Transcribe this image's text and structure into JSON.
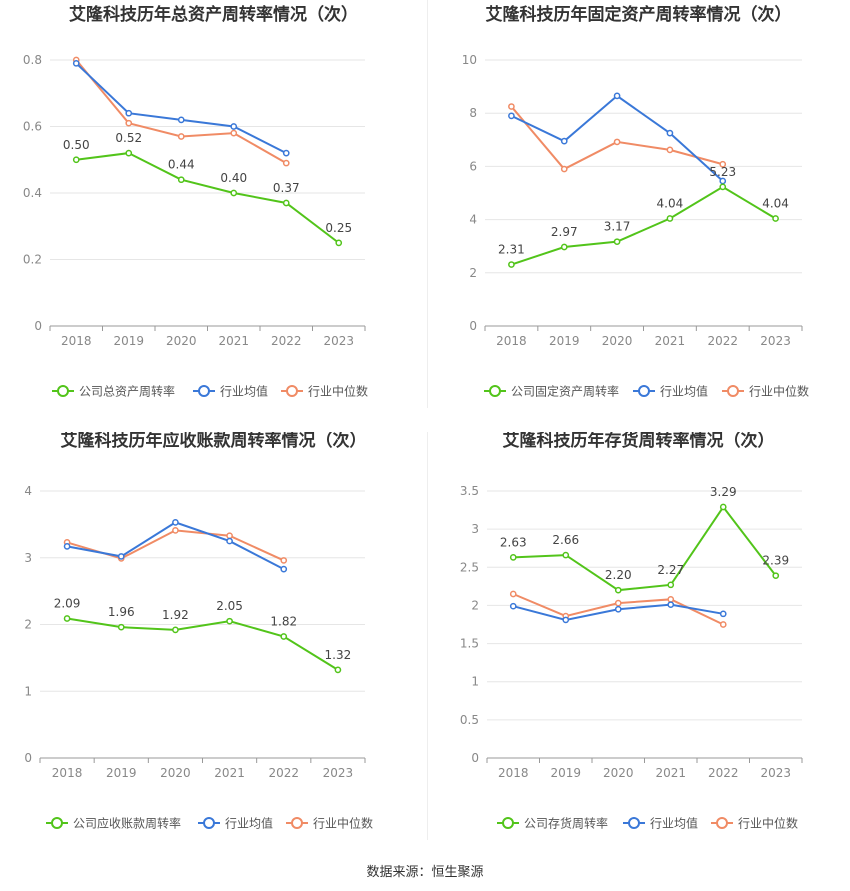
{
  "source": "数据来源：恒生聚源",
  "colors": {
    "company": "#52c41a",
    "industry_avg": "#3a78d8",
    "industry_median": "#f08b65",
    "grid": "#e6e6e6",
    "axis_text": "#888888",
    "title": "#333333"
  },
  "chart_data": [
    {
      "type": "line",
      "title": "艾隆科技历年总资产周转率情况（次）",
      "categories": [
        "2018",
        "2019",
        "2020",
        "2021",
        "2022",
        "2023"
      ],
      "ylim": [
        0,
        0.8
      ],
      "yticks": [
        "0",
        "0.2",
        "0.4",
        "0.6",
        "0.8"
      ],
      "legend_position": "bottom",
      "series": [
        {
          "name": "公司总资产周转率",
          "values": [
            0.5,
            0.52,
            0.44,
            0.4,
            0.37,
            0.25
          ],
          "labels": [
            "0.50",
            "0.52",
            "0.44",
            "0.40",
            "0.37",
            "0.25"
          ]
        },
        {
          "name": "行业均值",
          "values": [
            0.79,
            0.64,
            0.62,
            0.6,
            0.52,
            null
          ]
        },
        {
          "name": "行业中位数",
          "values": [
            0.8,
            0.61,
            0.57,
            0.58,
            0.49,
            null
          ]
        }
      ]
    },
    {
      "type": "line",
      "title": "艾隆科技历年固定资产周转率情况（次）",
      "categories": [
        "2018",
        "2019",
        "2020",
        "2021",
        "2022",
        "2023"
      ],
      "ylim": [
        0,
        10
      ],
      "yticks": [
        "0",
        "2",
        "4",
        "6",
        "8",
        "10"
      ],
      "legend_position": "bottom",
      "series": [
        {
          "name": "公司固定资产周转率",
          "values": [
            2.31,
            2.97,
            3.17,
            4.04,
            5.23,
            4.04
          ],
          "labels": [
            "2.31",
            "2.97",
            "3.17",
            "4.04",
            "5.23",
            "4.04"
          ]
        },
        {
          "name": "行业均值",
          "values": [
            7.9,
            6.95,
            8.65,
            7.25,
            5.45,
            null
          ]
        },
        {
          "name": "行业中位数",
          "values": [
            8.25,
            5.9,
            6.92,
            6.62,
            6.08,
            null
          ]
        }
      ]
    },
    {
      "type": "line",
      "title": "艾隆科技历年应收账款周转率情况（次）",
      "categories": [
        "2018",
        "2019",
        "2020",
        "2021",
        "2022",
        "2023"
      ],
      "ylim": [
        0,
        4
      ],
      "yticks": [
        "0",
        "1",
        "2",
        "3",
        "4"
      ],
      "legend_position": "bottom",
      "series": [
        {
          "name": "公司应收账款周转率",
          "values": [
            2.09,
            1.96,
            1.92,
            2.05,
            1.82,
            1.32
          ],
          "labels": [
            "2.09",
            "1.96",
            "1.92",
            "2.05",
            "1.82",
            "1.32"
          ]
        },
        {
          "name": "行业均值",
          "values": [
            3.17,
            3.02,
            3.53,
            3.25,
            2.83,
            null
          ]
        },
        {
          "name": "行业中位数",
          "values": [
            3.23,
            2.99,
            3.41,
            3.33,
            2.96,
            null
          ]
        }
      ]
    },
    {
      "type": "line",
      "title": "艾隆科技历年存货周转率情况（次）",
      "categories": [
        "2018",
        "2019",
        "2020",
        "2021",
        "2022",
        "2023"
      ],
      "ylim": [
        0,
        3.5
      ],
      "yticks": [
        "0",
        "0.5",
        "1",
        "1.5",
        "2",
        "2.5",
        "3",
        "3.5"
      ],
      "legend_position": "bottom",
      "series": [
        {
          "name": "公司存货周转率",
          "values": [
            2.63,
            2.66,
            2.2,
            2.27,
            3.29,
            2.39
          ],
          "labels": [
            "2.63",
            "2.66",
            "2.20",
            "2.27",
            "3.29",
            "2.39"
          ]
        },
        {
          "name": "行业均值",
          "values": [
            1.99,
            1.81,
            1.95,
            2.01,
            1.89,
            null
          ]
        },
        {
          "name": "行业中位数",
          "values": [
            2.15,
            1.86,
            2.03,
            2.08,
            1.75,
            null
          ]
        }
      ]
    }
  ]
}
